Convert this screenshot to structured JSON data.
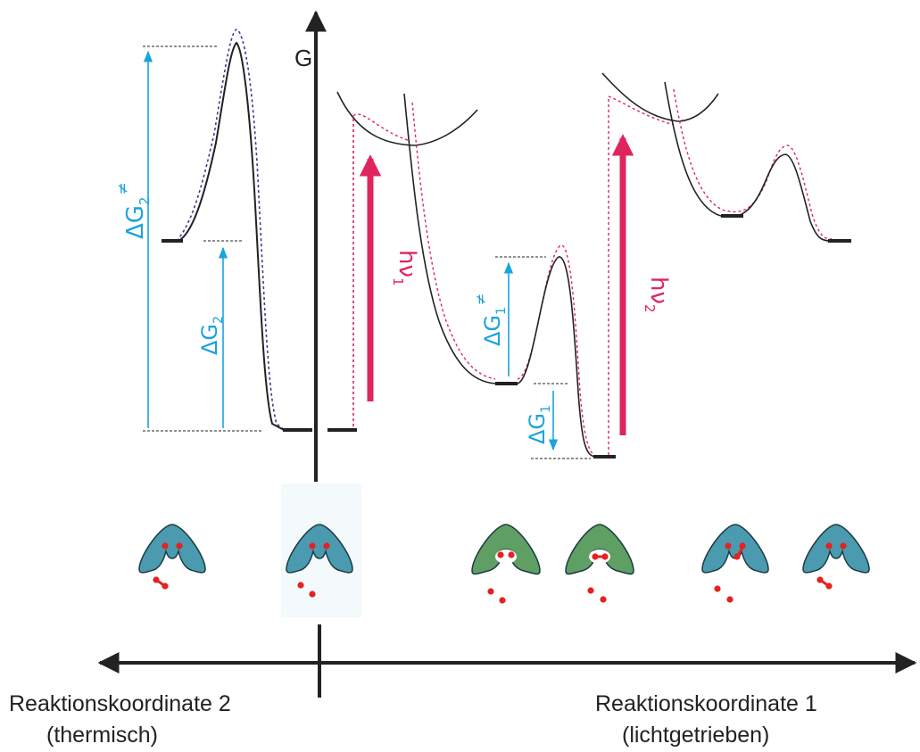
{
  "axes": {
    "g_label": "G",
    "coord2_label": "Reaktionskoordinate 2",
    "coord2_sub": "(thermisch)",
    "coord1_label": "Reaktionskoordinate 1",
    "coord1_sub": "(lichtgetrieben)"
  },
  "annotations": {
    "dg2_act": {
      "base": "ΔG",
      "sub": "2",
      "sup": "≠"
    },
    "dg2": {
      "base": "ΔG",
      "sub": "2"
    },
    "hv1": {
      "base": "hν",
      "sub": "1"
    },
    "dg1_act": {
      "base": "ΔG",
      "sub": "1",
      "sup": "≠"
    },
    "dg1": {
      "base": "ΔG",
      "sub": "1"
    },
    "hv2": {
      "base": "hν",
      "sub": "2"
    }
  },
  "molecules": [
    {
      "state": "open-empty",
      "color": "#4a9bb0"
    },
    {
      "state": "open-empty",
      "color": "#4a9bb0"
    },
    {
      "state": "closed-empty",
      "color": "#5f9f63"
    },
    {
      "state": "closed-bound",
      "color": "#5f9f63"
    },
    {
      "state": "open-releasing",
      "color": "#4a9bb0"
    },
    {
      "state": "open-bound",
      "color": "#4a9bb0"
    }
  ],
  "colors": {
    "curve": "#222222",
    "dotted_blue": "#3a3a9a",
    "dotted_red": "#e0245e",
    "cyan_arrow": "#1aa3dc",
    "red_arrow": "#e0245e",
    "ligand": "#e52121",
    "highlight_bg": "#f4f9fb"
  }
}
